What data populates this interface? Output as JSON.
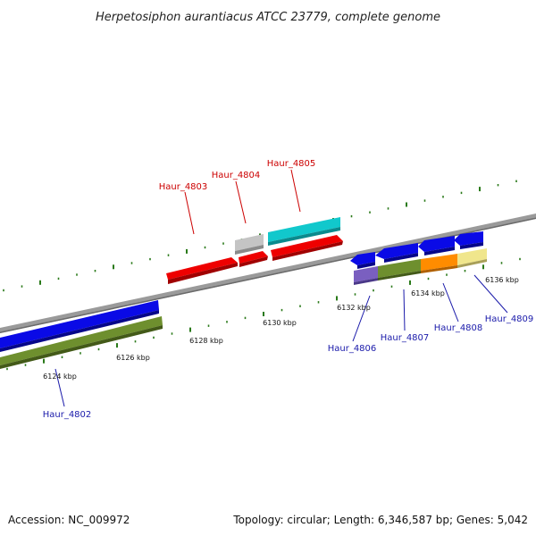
{
  "title": "Herpetosiphon aurantiacus ATCC 23779, complete genome",
  "footer": {
    "accession": "Accession: NC_009972",
    "summary": "Topology: circular; Length: 6,346,587 bp; Genes: 5,042"
  },
  "colors": {
    "backbone": "#888888",
    "tick": "#2a7a1a",
    "label_forward": "#cc0000",
    "label_reverse": "#1a1aaa",
    "red": "#ee0000",
    "gray": "#c4c4c4",
    "cyan": "#11c8cc",
    "blue": "#0a0ae6",
    "olive": "#6e8f2e",
    "purple": "#7a5fc0",
    "orange": "#ff8c00",
    "khaki": "#f0e68c"
  },
  "tick_labels": [
    {
      "id": "t6124",
      "text": "6124 kbp"
    },
    {
      "id": "t6126",
      "text": "6126 kbp"
    },
    {
      "id": "t6128",
      "text": "6128 kbp"
    },
    {
      "id": "t6130",
      "text": "6130 kbp"
    },
    {
      "id": "t6132",
      "text": "6132 kbp"
    },
    {
      "id": "t6134",
      "text": "6134 kbp"
    },
    {
      "id": "t6136",
      "text": "6136 kbp"
    }
  ],
  "gene_labels": [
    {
      "id": "g4802",
      "text": "Haur_4802",
      "strand": "reverse"
    },
    {
      "id": "g4803",
      "text": "Haur_4803",
      "strand": "forward"
    },
    {
      "id": "g4804",
      "text": "Haur_4804",
      "strand": "forward"
    },
    {
      "id": "g4805",
      "text": "Haur_4805",
      "strand": "forward"
    },
    {
      "id": "g4806",
      "text": "Haur_4806",
      "strand": "reverse"
    },
    {
      "id": "g4807",
      "text": "Haur_4807",
      "strand": "reverse"
    },
    {
      "id": "g4808",
      "text": "Haur_4808",
      "strand": "reverse"
    },
    {
      "id": "g4809",
      "text": "Haur_4809",
      "strand": "reverse"
    }
  ]
}
